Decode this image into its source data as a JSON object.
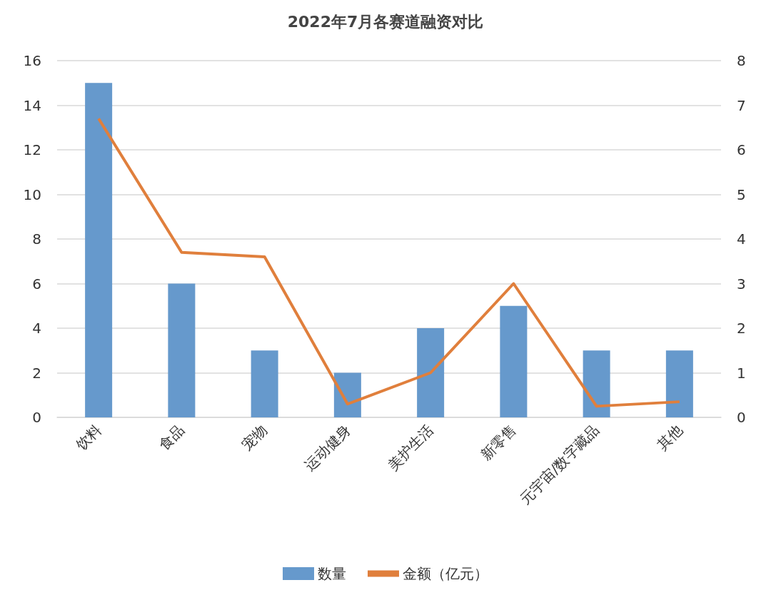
{
  "chart_data": {
    "type": "bar",
    "title": "2022年7月各赛道融资对比",
    "categories": [
      "饮料",
      "食品",
      "宠物",
      "运动健身",
      "美护生活",
      "新零售",
      "元宇宙/数字藏品",
      "其他"
    ],
    "series": [
      {
        "name": "数量",
        "color": "#6699cc",
        "values": [
          15,
          6,
          3,
          2,
          4,
          5,
          3,
          3
        ]
      },
      {
        "name": "金额（亿元）",
        "type": "line",
        "axis": "y2",
        "color": "#e07f3c",
        "values": [
          6.7,
          3.7,
          3.6,
          0.3,
          1.0,
          3.0,
          0.25,
          0.35
        ]
      }
    ],
    "ylim": [
      0,
      16
    ],
    "yticks": [
      0,
      2,
      4,
      6,
      8,
      10,
      12,
      14,
      16
    ],
    "y2lim": [
      0,
      8
    ],
    "y2ticks": [
      0,
      1,
      2,
      3,
      4,
      5,
      6,
      7,
      8
    ],
    "grid": "y",
    "legend": "bottom",
    "marker": "none",
    "line_style": "solid"
  }
}
